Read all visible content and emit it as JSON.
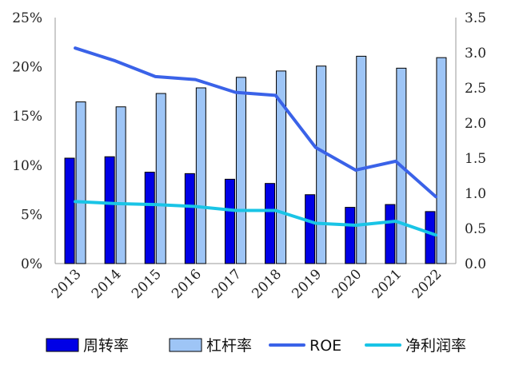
{
  "chart_data": {
    "type": "bar",
    "categories": [
      "2013",
      "2014",
      "2015",
      "2016",
      "2017",
      "2018",
      "2019",
      "2020",
      "2021",
      "2022"
    ],
    "left_axis": {
      "ylim": [
        0,
        25
      ],
      "ticks": [
        "0%",
        "5%",
        "10%",
        "15%",
        "20%",
        "25%"
      ],
      "tick_values": [
        0,
        5,
        10,
        15,
        20,
        25
      ]
    },
    "right_axis": {
      "ylim": [
        0,
        3.5
      ],
      "ticks": [
        "0.0",
        "0.5",
        "1.0",
        "1.5",
        "2.0",
        "2.5",
        "3.0",
        "3.5"
      ],
      "tick_values": [
        0,
        0.5,
        1.0,
        1.5,
        2.0,
        2.5,
        3.0,
        3.5
      ]
    },
    "series": [
      {
        "name": "周转率",
        "kind": "bar",
        "axis": "right",
        "color": "#0000e6",
        "values": [
          1.5,
          1.52,
          1.3,
          1.28,
          1.2,
          1.14,
          0.98,
          0.8,
          0.84,
          0.74
        ]
      },
      {
        "name": "杠杆率",
        "kind": "bar",
        "axis": "right",
        "color": "#9ec5f6",
        "values": [
          2.3,
          2.23,
          2.42,
          2.5,
          2.65,
          2.74,
          2.81,
          2.95,
          2.78,
          2.93
        ]
      },
      {
        "name": "ROE",
        "kind": "line",
        "axis": "left",
        "color": "#3a62e8",
        "values": [
          21.9,
          20.6,
          19.0,
          18.7,
          17.4,
          17.1,
          11.8,
          9.5,
          10.4,
          6.8
        ]
      },
      {
        "name": "净利润率",
        "kind": "line",
        "axis": "left",
        "color": "#19c4e6",
        "values": [
          6.3,
          6.1,
          6.0,
          5.8,
          5.4,
          5.4,
          4.1,
          3.9,
          4.3,
          2.9
        ]
      }
    ],
    "legend": "bottom",
    "grid": false
  }
}
